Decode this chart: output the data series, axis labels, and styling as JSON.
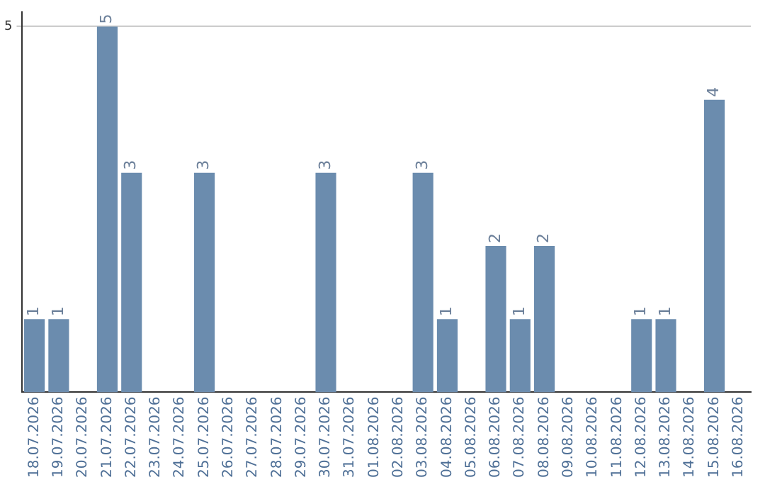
{
  "chart_data": {
    "type": "bar",
    "categories": [
      "18.07.2026",
      "19.07.2026",
      "20.07.2026",
      "21.07.2026",
      "22.07.2026",
      "23.07.2026",
      "24.07.2026",
      "25.07.2026",
      "26.07.2026",
      "27.07.2026",
      "28.07.2026",
      "29.07.2026",
      "30.07.2026",
      "31.07.2026",
      "01.08.2026",
      "02.08.2026",
      "03.08.2026",
      "04.08.2026",
      "05.08.2026",
      "06.08.2026",
      "07.08.2026",
      "08.08.2026",
      "09.08.2026",
      "10.08.2026",
      "11.08.2026",
      "12.08.2026",
      "13.08.2026",
      "14.08.2026",
      "15.08.2026",
      "16.08.2026"
    ],
    "values": [
      1,
      1,
      null,
      5,
      3,
      null,
      null,
      3,
      null,
      null,
      null,
      null,
      3,
      null,
      null,
      null,
      3,
      1,
      null,
      2,
      1,
      2,
      null,
      null,
      null,
      1,
      1,
      null,
      4,
      null
    ],
    "color": "#6b8cae",
    "ylim": [
      0,
      5.2
    ],
    "yticks": [
      5
    ],
    "grid": "y",
    "data_labels": true,
    "legend": false
  }
}
